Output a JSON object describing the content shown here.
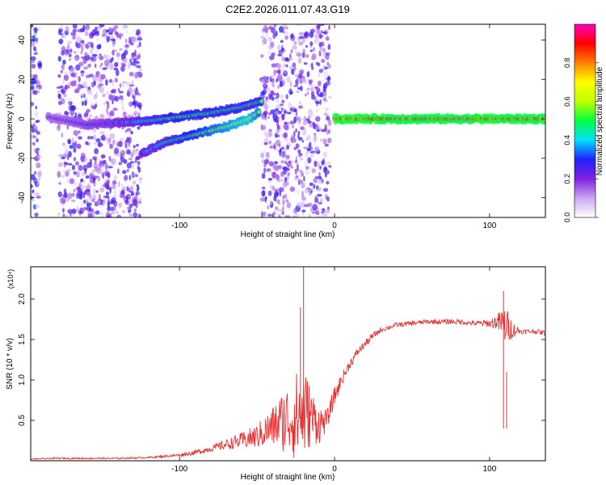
{
  "title": "C2E2.2026.011.07.43.G19",
  "chart_data": [
    {
      "type": "heatmap",
      "title": "C2E2.2026.011.07.43.G19",
      "xlabel": "Height of straight line (km)",
      "ylabel": "Frequency (Hz)",
      "xlim": [
        -196,
        136
      ],
      "ylim": [
        -50,
        48
      ],
      "x_ticks": [
        -100,
        0,
        100
      ],
      "x_tick_labels": [
        "-100",
        "0",
        "100"
      ],
      "y_ticks": [
        -40,
        -20,
        0,
        20,
        40
      ],
      "y_tick_labels": [
        "-40",
        "-20",
        "0",
        "20",
        "40"
      ],
      "colorbar": {
        "label": "Normalized spectral amplitude",
        "range": [
          0.0,
          1.0
        ],
        "ticks": [
          0.0,
          0.2,
          0.4,
          0.6,
          0.8
        ],
        "tick_labels": [
          "0.0",
          "0.2",
          "0.4",
          "0.6",
          "0.8"
        ],
        "colors": [
          "#ffffff",
          "#c9a8f0",
          "#8020e0",
          "#2020ff",
          "#00e0ff",
          "#00ff40",
          "#c0ff00",
          "#ffff00",
          "#ff8000",
          "#ff0000",
          "#ff00c0"
        ]
      },
      "noise_regions": [
        {
          "x": [
            -196,
            -190
          ],
          "amp": 0.35
        },
        {
          "x": [
            -178,
            -125
          ],
          "amp": 0.3
        },
        {
          "x": [
            -47,
            -3
          ],
          "amp": 0.3
        }
      ],
      "ridges": [
        {
          "name": "ridge 1",
          "x": [
            -185,
            -160,
            -140,
            -120,
            -100,
            -80,
            -60,
            -47
          ],
          "freq": [
            1,
            -3,
            -2,
            -1,
            1,
            3,
            6,
            9
          ],
          "amp": [
            0.25,
            0.3,
            0.35,
            0.45,
            0.55,
            0.5,
            0.5,
            0.5
          ]
        },
        {
          "name": "ridge 2",
          "x": [
            -125,
            -110,
            -90,
            -70,
            -55,
            -48
          ],
          "freq": [
            -18,
            -12,
            -8,
            -4,
            0,
            4
          ],
          "amp": [
            0.35,
            0.45,
            0.55,
            0.65,
            0.7,
            0.6
          ]
        },
        {
          "name": "ridge 3",
          "x": [
            0,
            20,
            40,
            60,
            80,
            100,
            120,
            136
          ],
          "freq": [
            0,
            0,
            0,
            0,
            0,
            0,
            0,
            0
          ],
          "amp": [
            0.92,
            0.92,
            0.9,
            0.9,
            0.9,
            0.92,
            0.9,
            0.9
          ]
        }
      ]
    },
    {
      "type": "line",
      "xlabel": "Height of straight line (km)",
      "ylabel": "SNR (10 * v/v)",
      "scale_label": "(x10⁴)",
      "xlim": [
        -196,
        136
      ],
      "ylim": [
        0,
        2.4
      ],
      "x_ticks": [
        -100,
        0,
        100
      ],
      "x_tick_labels": [
        "-100",
        "0",
        "100"
      ],
      "y_ticks": [
        0.5,
        1.0,
        1.5,
        2.0
      ],
      "y_tick_labels": [
        "0.5",
        "1.0",
        "1.5",
        "2.0"
      ],
      "line_color": "#e83030",
      "series": [
        {
          "name": "SNR",
          "x": [
            -196,
            -180,
            -160,
            -140,
            -120,
            -100,
            -90,
            -80,
            -70,
            -60,
            -50,
            -40,
            -35,
            -30,
            -25,
            -20,
            -15,
            -10,
            -5,
            0,
            5,
            10,
            15,
            20,
            25,
            30,
            40,
            50,
            60,
            70,
            80,
            90,
            100,
            105,
            110,
            115,
            120,
            130,
            136
          ],
          "y": [
            0.02,
            0.03,
            0.03,
            0.03,
            0.04,
            0.07,
            0.1,
            0.15,
            0.2,
            0.25,
            0.3,
            0.42,
            0.48,
            0.52,
            0.55,
            0.6,
            0.55,
            0.45,
            0.5,
            0.8,
            1.02,
            1.2,
            1.35,
            1.45,
            1.55,
            1.62,
            1.68,
            1.7,
            1.72,
            1.72,
            1.72,
            1.7,
            1.7,
            1.72,
            1.68,
            1.62,
            1.6,
            1.6,
            1.58
          ],
          "noise": [
            0.005,
            0.01,
            0.01,
            0.01,
            0.01,
            0.02,
            0.03,
            0.04,
            0.06,
            0.1,
            0.15,
            0.25,
            0.35,
            0.45,
            0.55,
            0.6,
            0.35,
            0.25,
            0.12,
            0.12,
            0.08,
            0.06,
            0.05,
            0.05,
            0.04,
            0.03,
            0.03,
            0.03,
            0.03,
            0.03,
            0.03,
            0.03,
            0.05,
            0.1,
            0.25,
            0.1,
            0.03,
            0.03,
            0.03
          ]
        }
      ],
      "spikes": [
        {
          "x": -20,
          "y": 2.4
        },
        {
          "x": -22,
          "y": 1.9
        },
        {
          "x": 109,
          "y": 2.1
        },
        {
          "x": 111,
          "y": 1.1
        }
      ]
    }
  ]
}
